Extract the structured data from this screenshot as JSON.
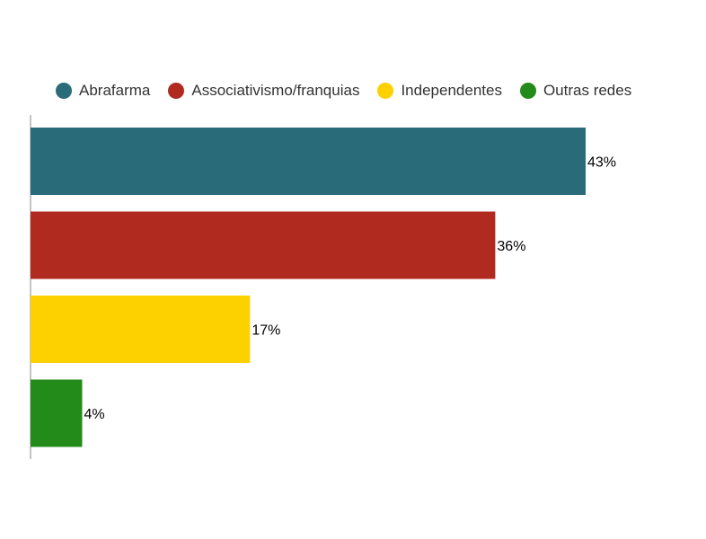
{
  "chart_data": {
    "type": "bar",
    "orientation": "horizontal",
    "categories": [
      "Abrafarma",
      "Associativismo/franquias",
      "Independentes",
      "Outras redes"
    ],
    "values": [
      43,
      36,
      17,
      4
    ],
    "value_labels": [
      "43%",
      "36%",
      "17%",
      "4%"
    ],
    "colors": [
      "#2a6b7a",
      "#b02a20",
      "#fdd100",
      "#238b1a"
    ],
    "xlim": [
      0,
      43
    ],
    "grid": false,
    "legend": "top"
  }
}
